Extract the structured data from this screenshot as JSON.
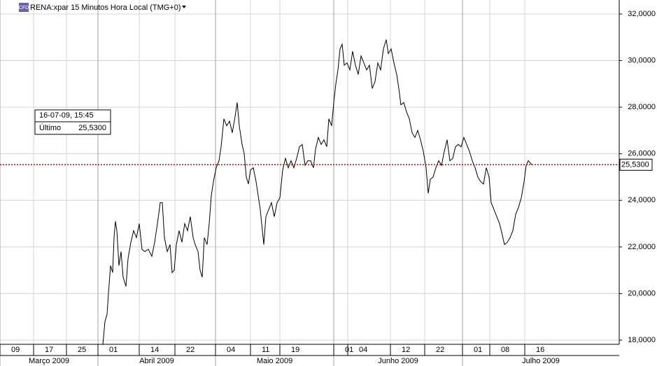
{
  "chart_data": {
    "type": "line",
    "title": "RENA:xpar 15 Minutos Hora Local (TMG+0)",
    "logo": "CFD",
    "xlim": [
      0,
      885
    ],
    "ylim": [
      17.82,
      32.6
    ],
    "yticks": [
      {
        "value": 18,
        "label": "18,0000"
      },
      {
        "value": 20,
        "label": "20,0000"
      },
      {
        "value": 22,
        "label": "22,0000"
      },
      {
        "value": 24,
        "label": "24,0000"
      },
      {
        "value": 26,
        "label": "26,0000"
      },
      {
        "value": 28,
        "label": "28,0000"
      },
      {
        "value": 30,
        "label": "30,0000"
      },
      {
        "value": 32,
        "label": "32,0000"
      }
    ],
    "xticks": [
      {
        "value": 0,
        "label": "09"
      },
      {
        "value": 48,
        "label": "17"
      },
      {
        "value": 95,
        "label": "25"
      },
      {
        "value": 140,
        "label": "01"
      },
      {
        "value": 199,
        "label": "14"
      },
      {
        "value": 250,
        "label": "22"
      },
      {
        "value": 308,
        "label": "04"
      },
      {
        "value": 358,
        "label": "11"
      },
      {
        "value": 400,
        "label": "19"
      },
      {
        "value": 477,
        "label": "01"
      },
      {
        "value": 497,
        "label": "04"
      },
      {
        "value": 558,
        "label": "12"
      },
      {
        "value": 607,
        "label": "22"
      },
      {
        "value": 661,
        "label": "01"
      },
      {
        "value": 700,
        "label": "08"
      },
      {
        "value": 750,
        "label": "16"
      }
    ],
    "x_groups": [
      {
        "label": "Março 2009",
        "start": 0,
        "end": 140
      },
      {
        "label": "Abril 2009",
        "start": 140,
        "end": 308
      },
      {
        "label": "Maio 2009",
        "start": 308,
        "end": 477
      },
      {
        "label": "Junho 2009",
        "start": 477,
        "end": 661
      },
      {
        "label": "Julho 2009",
        "start": 661,
        "end": 885
      }
    ],
    "grid": true,
    "color": "#000000",
    "x": [
      147,
      150,
      153,
      155,
      158,
      161,
      163,
      165,
      167,
      170,
      173,
      176,
      180,
      183,
      187,
      191,
      195,
      199,
      203,
      207,
      212,
      217,
      221,
      225,
      229,
      232,
      235,
      239,
      243,
      246,
      249,
      252,
      256,
      260,
      264,
      268,
      272,
      276,
      279,
      283,
      286,
      289,
      292,
      296,
      299,
      302,
      305,
      309,
      313,
      316,
      320,
      324,
      328,
      332,
      336,
      339,
      342,
      346,
      349,
      352,
      355,
      358,
      362,
      366,
      369,
      372,
      375,
      377,
      380,
      384,
      388,
      392,
      396,
      400,
      404,
      408,
      412,
      416,
      420,
      424,
      428,
      432,
      436,
      440,
      444,
      448,
      451,
      455,
      459,
      463,
      467,
      470,
      474,
      477,
      480,
      483,
      486,
      489,
      492,
      496,
      500,
      504,
      508,
      512,
      516,
      520,
      524,
      528,
      532,
      536,
      540,
      544,
      548,
      552,
      555,
      559,
      563,
      567,
      570,
      573,
      577,
      581,
      585,
      589,
      593,
      597,
      601,
      605,
      609,
      612,
      615,
      619,
      623,
      627,
      631,
      635,
      639,
      643,
      647,
      651,
      655,
      659,
      663,
      667,
      671,
      675,
      679,
      683,
      687,
      691,
      695,
      699,
      702,
      706,
      710,
      714,
      718,
      721,
      725,
      729,
      733,
      737,
      741,
      745,
      749,
      752,
      755,
      758,
      760
    ],
    "values": [
      17.8,
      18.8,
      19.1,
      20.0,
      21.2,
      20.9,
      22.4,
      23.1,
      22.7,
      21.2,
      21.8,
      20.7,
      20.3,
      21.5,
      22.2,
      22.7,
      22.4,
      23.0,
      21.9,
      21.8,
      21.9,
      21.6,
      22.2,
      23.0,
      23.9,
      23.9,
      22.4,
      21.8,
      22.1,
      20.9,
      21.0,
      22.1,
      22.7,
      22.2,
      23.0,
      22.7,
      23.3,
      22.4,
      22.1,
      21.8,
      21.0,
      20.7,
      22.4,
      22.1,
      23.0,
      24.2,
      24.8,
      25.4,
      25.7,
      26.3,
      27.5,
      27.2,
      27.4,
      26.9,
      27.6,
      28.2,
      27.2,
      26.4,
      26.0,
      25.0,
      24.7,
      25.3,
      25.4,
      24.8,
      24.2,
      23.6,
      22.7,
      22.1,
      23.3,
      23.6,
      23.9,
      23.3,
      23.9,
      24.1,
      25.3,
      25.8,
      25.4,
      25.7,
      25.4,
      25.8,
      26.3,
      26.4,
      25.5,
      25.7,
      25.7,
      25.4,
      26.2,
      26.7,
      26.4,
      26.6,
      26.3,
      27.5,
      27.2,
      28.2,
      29.0,
      29.6,
      30.5,
      30.7,
      29.8,
      29.9,
      29.6,
      30.4,
      29.8,
      29.4,
      30.2,
      29.9,
      29.6,
      29.8,
      28.8,
      29.1,
      29.9,
      29.6,
      30.5,
      30.9,
      30.3,
      30.5,
      29.9,
      29.4,
      28.8,
      28.1,
      28.2,
      27.8,
      27.5,
      26.9,
      26.7,
      27.0,
      26.6,
      26.1,
      25.4,
      24.3,
      24.9,
      25.0,
      25.4,
      25.7,
      25.5,
      26.1,
      26.6,
      25.7,
      25.8,
      26.3,
      26.4,
      26.3,
      26.7,
      26.4,
      26.1,
      25.7,
      25.4,
      25.0,
      24.8,
      24.7,
      25.4,
      25.0,
      23.9,
      23.6,
      23.3,
      23.0,
      22.5,
      22.1,
      22.2,
      22.4,
      22.7,
      23.4,
      23.7,
      24.1,
      24.8,
      25.5,
      25.7,
      25.6,
      25.53
    ],
    "reference_line": {
      "value": 25.53,
      "label": "25,5300",
      "color": "#cc0000"
    },
    "tooltip": {
      "date": "16-07-09, 15:45",
      "field": "Último",
      "value_label": "25,5300"
    }
  }
}
